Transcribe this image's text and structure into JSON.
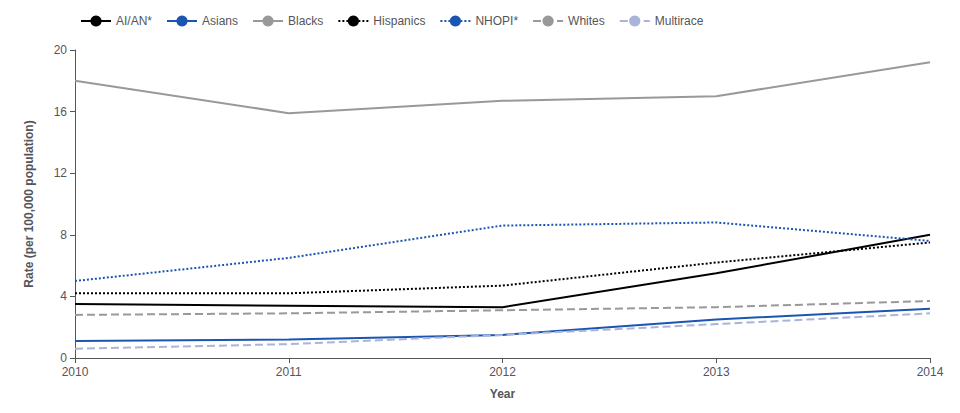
{
  "chart_data": {
    "type": "line",
    "xlabel": "Year",
    "ylabel": "Rate (per 100,000 population)",
    "x": [
      2010,
      2011,
      2012,
      2013,
      2014
    ],
    "xlim": [
      2010,
      2014
    ],
    "xticks": [
      2010,
      2011,
      2012,
      2013,
      2014
    ],
    "ylim": [
      0,
      20
    ],
    "yticks": [
      0,
      4,
      8,
      12,
      16,
      20
    ],
    "grid": false,
    "legend": "upper left",
    "series": [
      {
        "name": "AI/AN*",
        "color": "#000000",
        "line_style": "solid",
        "values": [
          3.5,
          3.4,
          3.3,
          5.5,
          8.0
        ]
      },
      {
        "name": "Asians",
        "color": "#1a56b0",
        "line_style": "solid",
        "values": [
          1.1,
          1.2,
          1.5,
          2.5,
          3.2
        ]
      },
      {
        "name": "Blacks",
        "color": "#999999",
        "line_style": "solid",
        "values": [
          18.0,
          15.9,
          16.7,
          17.0,
          19.2
        ]
      },
      {
        "name": "Hispanics",
        "color": "#000000",
        "line_style": "dotted",
        "values": [
          4.2,
          4.2,
          4.7,
          6.2,
          7.5
        ]
      },
      {
        "name": "NHOPI*",
        "color": "#1a56b0",
        "line_style": "dotted",
        "values": [
          5.0,
          6.5,
          8.6,
          8.8,
          7.6
        ]
      },
      {
        "name": "Whites",
        "color": "#999999",
        "line_style": "dashed",
        "values": [
          2.8,
          2.9,
          3.1,
          3.3,
          3.7
        ]
      },
      {
        "name": "Multirace",
        "color": "#aab4d8",
        "line_style": "dashed",
        "values": [
          0.6,
          0.9,
          1.5,
          2.2,
          2.9
        ]
      }
    ]
  }
}
